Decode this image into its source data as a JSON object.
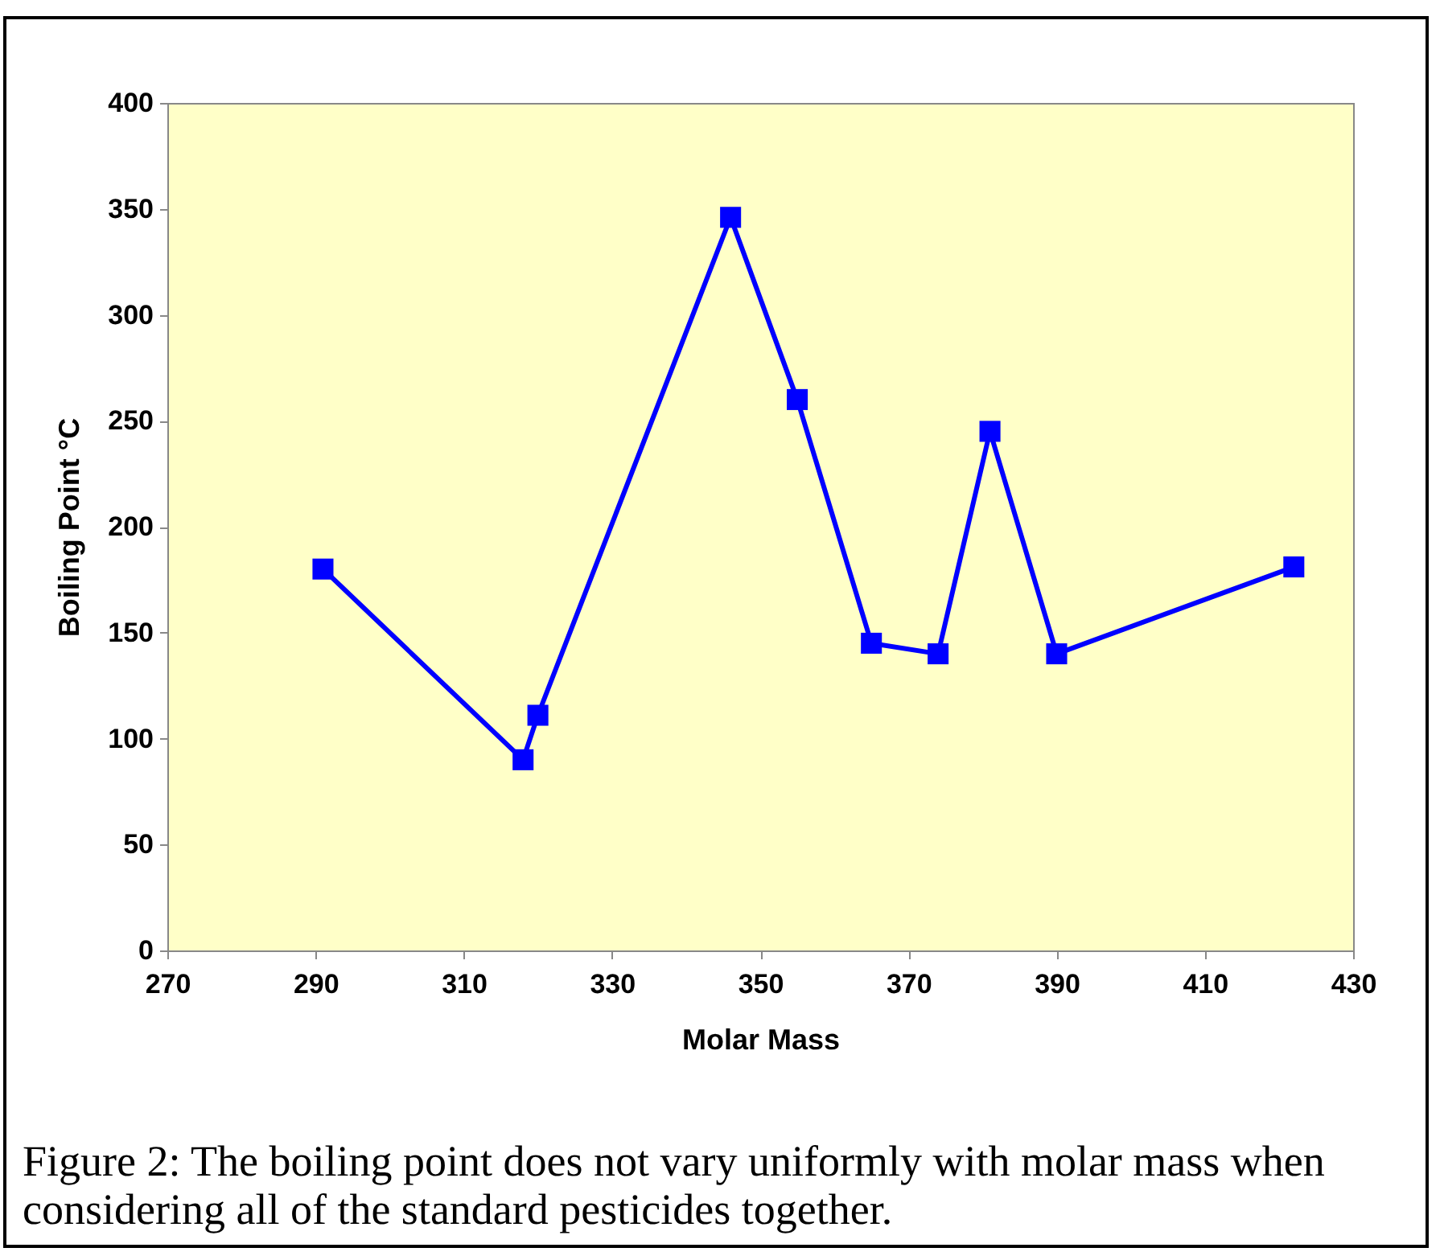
{
  "chart_data": {
    "type": "line",
    "xlabel": "Molar Mass",
    "ylabel": "Boiling Point °C",
    "x": [
      291,
      318,
      320,
      346,
      355,
      365,
      374,
      381,
      390,
      422
    ],
    "series": [
      {
        "color": "#0000ff",
        "values": [
          180,
          90,
          111,
          346,
          260,
          145,
          140,
          245,
          140,
          181
        ]
      }
    ],
    "xlim": [
      270,
      430
    ],
    "xticks": [
      270,
      290,
      310,
      330,
      350,
      370,
      390,
      410,
      430
    ],
    "ylim": [
      0,
      400
    ],
    "yticks": [
      0,
      50,
      100,
      150,
      200,
      250,
      300,
      350,
      400
    ],
    "marker": "square",
    "line_style": "solid",
    "grid": false,
    "annotations": [
      "Figure 2: The boiling point does not vary uniformly with molar mass when considering all of the standard pesticides together."
    ]
  }
}
